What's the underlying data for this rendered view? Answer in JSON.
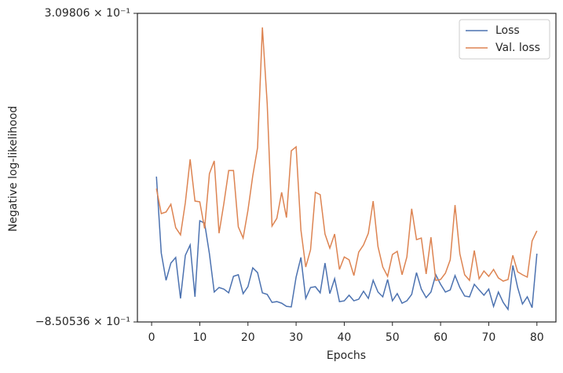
{
  "chart_data": {
    "type": "line",
    "xlabel": "Epochs",
    "ylabel": "Negative log-likelihood",
    "x": [
      1,
      2,
      3,
      4,
      5,
      6,
      7,
      8,
      9,
      10,
      11,
      12,
      13,
      14,
      15,
      16,
      17,
      18,
      19,
      20,
      21,
      22,
      23,
      24,
      25,
      26,
      27,
      28,
      29,
      30,
      31,
      32,
      33,
      34,
      35,
      36,
      37,
      38,
      39,
      40,
      41,
      42,
      43,
      44,
      45,
      46,
      47,
      48,
      49,
      50,
      51,
      52,
      53,
      54,
      55,
      56,
      57,
      58,
      59,
      60,
      61,
      62,
      63,
      64,
      65,
      66,
      67,
      68,
      69,
      70,
      71,
      72,
      73,
      74,
      75,
      76,
      77,
      78,
      79,
      80
    ],
    "series": [
      {
        "name": "Loss",
        "color": "#4c72b0",
        "values": [
          -0.304,
          -0.591,
          -0.694,
          -0.629,
          -0.608,
          -0.762,
          -0.6,
          -0.561,
          -0.756,
          -0.47,
          -0.479,
          -0.594,
          -0.738,
          -0.721,
          -0.727,
          -0.741,
          -0.679,
          -0.673,
          -0.744,
          -0.718,
          -0.647,
          -0.665,
          -0.741,
          -0.747,
          -0.777,
          -0.774,
          -0.78,
          -0.792,
          -0.794,
          -0.682,
          -0.608,
          -0.762,
          -0.721,
          -0.718,
          -0.741,
          -0.629,
          -0.744,
          -0.688,
          -0.774,
          -0.771,
          -0.75,
          -0.771,
          -0.765,
          -0.735,
          -0.762,
          -0.694,
          -0.738,
          -0.756,
          -0.691,
          -0.771,
          -0.744,
          -0.78,
          -0.771,
          -0.747,
          -0.665,
          -0.727,
          -0.759,
          -0.738,
          -0.673,
          -0.709,
          -0.738,
          -0.73,
          -0.676,
          -0.721,
          -0.753,
          -0.756,
          -0.709,
          -0.73,
          -0.75,
          -0.727,
          -0.792,
          -0.738,
          -0.777,
          -0.803,
          -0.638,
          -0.721,
          -0.783,
          -0.756,
          -0.797,
          -0.594
        ]
      },
      {
        "name": "Val. loss",
        "color": "#dd8452",
        "values": [
          -0.349,
          -0.443,
          -0.437,
          -0.408,
          -0.496,
          -0.523,
          -0.402,
          -0.239,
          -0.396,
          -0.399,
          -0.499,
          -0.293,
          -0.245,
          -0.517,
          -0.405,
          -0.281,
          -0.281,
          -0.493,
          -0.535,
          -0.431,
          -0.301,
          -0.195,
          0.257,
          -0.03,
          -0.49,
          -0.461,
          -0.363,
          -0.458,
          -0.207,
          -0.192,
          -0.505,
          -0.644,
          -0.579,
          -0.363,
          -0.372,
          -0.52,
          -0.573,
          -0.52,
          -0.653,
          -0.606,
          -0.617,
          -0.676,
          -0.588,
          -0.561,
          -0.517,
          -0.396,
          -0.567,
          -0.644,
          -0.679,
          -0.597,
          -0.585,
          -0.673,
          -0.606,
          -0.425,
          -0.541,
          -0.535,
          -0.67,
          -0.532,
          -0.694,
          -0.691,
          -0.667,
          -0.617,
          -0.411,
          -0.594,
          -0.673,
          -0.694,
          -0.582,
          -0.688,
          -0.659,
          -0.679,
          -0.653,
          -0.685,
          -0.697,
          -0.691,
          -0.6,
          -0.662,
          -0.673,
          -0.682,
          -0.546,
          -0.508
        ]
      }
    ],
    "xlim": [
      -2.95,
      83.95
    ],
    "xticks": [
      0,
      10,
      20,
      30,
      40,
      50,
      60,
      70,
      80
    ],
    "ylim": [
      -0.850536,
      0.309806
    ],
    "yticks": [
      {
        "value": -0.850536,
        "label": "−8.50536 × 10⁻¹"
      },
      {
        "value": 0.309806,
        "label": "3.09806 × 10⁻¹"
      }
    ],
    "legend": "upper right"
  }
}
